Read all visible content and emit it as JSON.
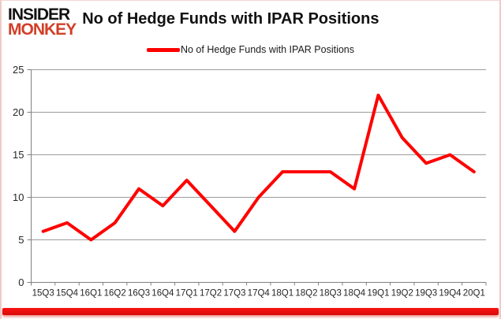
{
  "logo": {
    "line1": "INSIDER",
    "line2": "MONKEY"
  },
  "header": {
    "title": "No of Hedge Funds with IPAR Positions"
  },
  "legend": {
    "label": "No of Hedge Funds with IPAR Positions"
  },
  "colors": {
    "line": "#ff0000",
    "gridline": "#9b9b9b",
    "axis": "#808080",
    "axis_label": "#262626",
    "logo_accent": "#d13f27",
    "bottom_bar": "#e30c0c"
  },
  "chart_data": {
    "type": "line",
    "title": "No of Hedge Funds with IPAR Positions",
    "categories": [
      "15Q3",
      "15Q4",
      "16Q1",
      "16Q2",
      "16Q3",
      "16Q4",
      "17Q1",
      "17Q2",
      "17Q3",
      "17Q4",
      "18Q1",
      "18Q2",
      "18Q3",
      "18Q4",
      "19Q1",
      "19Q2",
      "19Q3",
      "19Q4",
      "20Q1"
    ],
    "series": [
      {
        "name": "No of Hedge Funds with IPAR Positions",
        "values": [
          6,
          7,
          5,
          7,
          11,
          9,
          12,
          9,
          6,
          10,
          13,
          13,
          13,
          11,
          22,
          17,
          14,
          15,
          13
        ]
      }
    ],
    "xlabel": "",
    "ylabel": "",
    "ylim": [
      0,
      25
    ],
    "yticks": [
      0,
      5,
      10,
      15,
      20,
      25
    ],
    "grid": true,
    "legend_position": "top-center",
    "line_color": "#ff0000"
  }
}
